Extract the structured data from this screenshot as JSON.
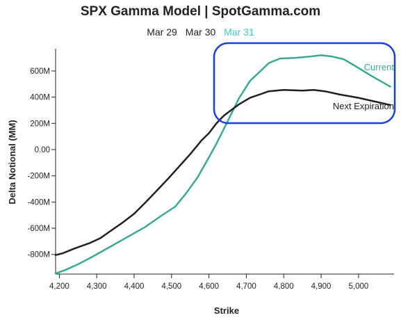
{
  "header": {
    "title": "SPX Gamma Model | SpotGamma.com",
    "tabs": [
      {
        "label": "Mar 29",
        "active": false
      },
      {
        "label": "Mar 30",
        "active": false
      },
      {
        "label": "Mar 31",
        "active": true
      }
    ]
  },
  "colors": {
    "current": "#3aa893",
    "next": "#1f1f1f",
    "highlight_box": "#1a3fe0",
    "active_tab": "#3ec8c4"
  },
  "chart_data": {
    "type": "line",
    "xlabel": "Strike",
    "ylabel": "Delta Notional (MM)",
    "xlim": [
      4190,
      5095
    ],
    "ylim": [
      -950,
      770
    ],
    "x_ticks": [
      4200,
      4300,
      4400,
      4500,
      4600,
      4700,
      4800,
      4900,
      5000
    ],
    "x_tick_labels": [
      "4,200",
      "4,300",
      "4,400",
      "4,500",
      "4,600",
      "4,700",
      "4,800",
      "4,900",
      "5,000"
    ],
    "y_ticks": [
      -800,
      -600,
      -400,
      -200,
      0,
      200,
      400,
      600
    ],
    "y_tick_labels": [
      "-800M",
      "-600M",
      "-400M",
      "-200M",
      "0.00",
      "200M",
      "400M",
      "600M"
    ],
    "grid": false,
    "series": [
      {
        "name": "Current",
        "x": [
          4190,
          4215,
          4250,
          4290,
          4340,
          4380,
          4430,
          4470,
          4510,
          4540,
          4570,
          4600,
          4620,
          4650,
          4680,
          4710,
          4740,
          4760,
          4790,
          4830,
          4870,
          4900,
          4930,
          4960,
          4990,
          5030,
          5085
        ],
        "y": [
          -945,
          -920,
          -875,
          -815,
          -735,
          -670,
          -590,
          -510,
          -435,
          -330,
          -210,
          -60,
          45,
          215,
          390,
          525,
          605,
          660,
          695,
          700,
          710,
          720,
          710,
          690,
          640,
          570,
          480
        ]
      },
      {
        "name": "Next Expiration",
        "x": [
          4190,
          4210,
          4240,
          4280,
          4310,
          4340,
          4370,
          4400,
          4430,
          4460,
          4490,
          4520,
          4550,
          4580,
          4600,
          4620,
          4640,
          4680,
          4710,
          4740,
          4760,
          4800,
          4850,
          4880,
          4910,
          4950,
          5000,
          5085
        ],
        "y": [
          -805,
          -790,
          -755,
          -715,
          -675,
          -615,
          -555,
          -490,
          -405,
          -315,
          -225,
          -130,
          -35,
          70,
          125,
          200,
          260,
          345,
          395,
          425,
          445,
          455,
          450,
          455,
          445,
          420,
          395,
          340
        ]
      }
    ],
    "annotations": [
      "Current",
      "Next Expiration"
    ]
  }
}
